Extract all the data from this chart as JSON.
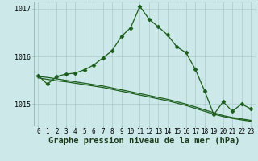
{
  "bg_color": "#cce8e8",
  "grid_color": "#aacccc",
  "line_color": "#1a5c1a",
  "title": "Graphe pression niveau de la mer (hPa)",
  "xlim": [
    -0.5,
    23.5
  ],
  "ylim": [
    1014.55,
    1017.15
  ],
  "yticks": [
    1015,
    1016,
    1017
  ],
  "ytick_labels": [
    "1015",
    "1016",
    "1017"
  ],
  "xticks": [
    0,
    1,
    2,
    3,
    4,
    5,
    6,
    7,
    8,
    9,
    10,
    11,
    12,
    13,
    14,
    15,
    16,
    17,
    18,
    19,
    20,
    21,
    22,
    23
  ],
  "line1": [
    1015.6,
    1015.42,
    1015.58,
    1015.63,
    1015.65,
    1015.72,
    1015.82,
    1015.97,
    1016.12,
    1016.42,
    1016.6,
    1017.05,
    1016.78,
    1016.62,
    1016.45,
    1016.2,
    1016.08,
    1015.73,
    1015.28,
    1014.78,
    1015.05,
    1014.85,
    1015.0,
    1014.9
  ],
  "line2": [
    1015.58,
    1015.56,
    1015.53,
    1015.5,
    1015.47,
    1015.44,
    1015.41,
    1015.38,
    1015.34,
    1015.3,
    1015.26,
    1015.22,
    1015.18,
    1015.14,
    1015.1,
    1015.05,
    1015.0,
    1014.94,
    1014.88,
    1014.82,
    1014.76,
    1014.72,
    1014.69,
    1014.66
  ],
  "line3": [
    1015.55,
    1015.52,
    1015.49,
    1015.47,
    1015.44,
    1015.41,
    1015.38,
    1015.35,
    1015.31,
    1015.27,
    1015.23,
    1015.19,
    1015.15,
    1015.11,
    1015.07,
    1015.02,
    1014.97,
    1014.91,
    1014.85,
    1014.79,
    1014.74,
    1014.7,
    1014.67,
    1014.64
  ],
  "marker": "D",
  "markersize": 2.5,
  "linewidth": 0.9,
  "title_fontsize": 7.5,
  "tick_fontsize": 5.5,
  "figsize": [
    3.2,
    2.0
  ],
  "dpi": 100
}
